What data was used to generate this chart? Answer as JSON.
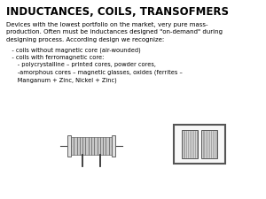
{
  "title": "INDUCTANCES, COILS, TRANSOFMERS",
  "background_color": "#ffffff",
  "text_color": "#000000",
  "body_text": "Devices with the lowest portfolio on the market, very pure mass-\nproduction. Often must be inductances designed \"on-demand\" during\ndesigning process. According design we recognize:",
  "bullet_lines": [
    "   - coils without magnetic core (air-wounded)",
    "   - coils with ferromagnetic core:",
    "      - polycrystalline – printed cores, powder cores,",
    "      -amorphous cores – magnetic glasses, oxides (ferrites –",
    "      Manganum + Zinc, Nickel + Zinc)"
  ],
  "figsize": [
    3.0,
    2.25
  ],
  "dpi": 100
}
